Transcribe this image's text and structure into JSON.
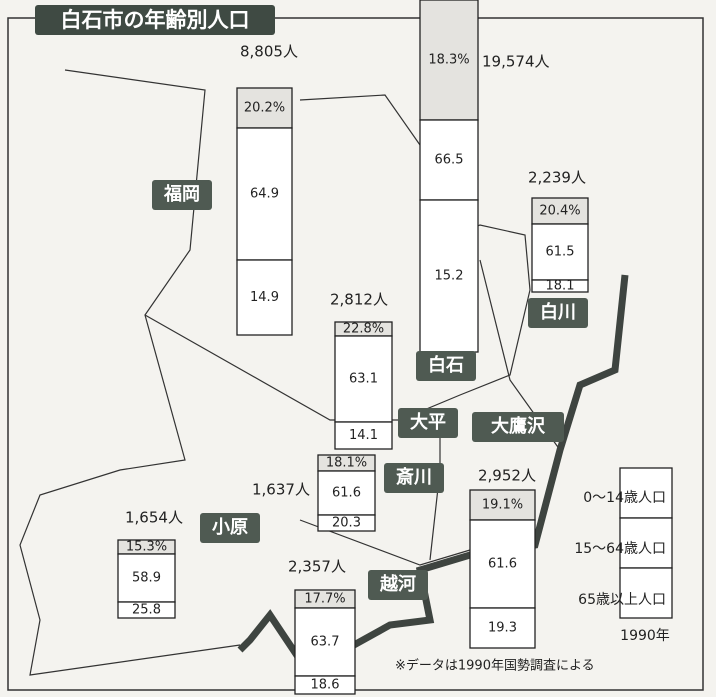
{
  "title": "白石市の年齢別人口",
  "districts": [
    {
      "name": "白石",
      "total": "19,574人",
      "young": "18.3%",
      "working": "66.5",
      "elderly": "15.2"
    },
    {
      "name": "福岡",
      "total": "8,805人",
      "young": "20.2%",
      "working": "64.9",
      "elderly": "14.9"
    },
    {
      "name": "白川",
      "total": "2,239人",
      "young": "20.4%",
      "working": "61.5",
      "elderly": "18.1"
    },
    {
      "name": "大平",
      "total": "2,812人",
      "young": "22.8%",
      "working": "63.1",
      "elderly": "14.1"
    },
    {
      "name": "斎川",
      "total": "1,637人",
      "young": "18.1%",
      "working": "61.6",
      "elderly": "20.3"
    },
    {
      "name": "大鷹沢",
      "total": "2,952人",
      "young": "19.1%",
      "working": "61.6",
      "elderly": "19.3"
    },
    {
      "name": "小原",
      "total": "1,654人",
      "young": "15.3%",
      "working": "58.9",
      "elderly": "25.8"
    },
    {
      "name": "越河",
      "total": "2,357人",
      "young": "17.7%",
      "working": "63.7",
      "elderly": "18.6"
    }
  ],
  "legend": {
    "items": [
      "0〜14歳人口",
      "15〜64歳人口",
      "65歳以上人口"
    ],
    "year": "1990年"
  },
  "note": "※データは1990年国勢調査による"
}
